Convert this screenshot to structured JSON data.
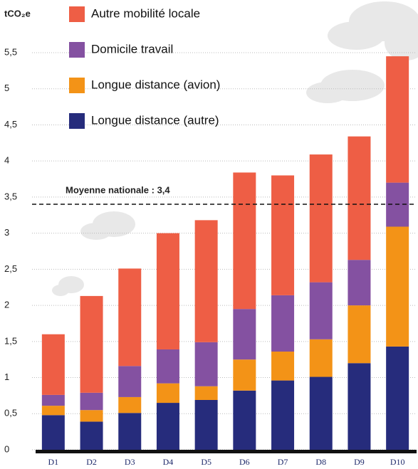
{
  "chart_data": {
    "type": "stacked_bar",
    "y_label": "tCO₂e",
    "categories": [
      "D1",
      "D2",
      "D3",
      "D4",
      "D5",
      "D6",
      "D7",
      "D8",
      "D9",
      "D10"
    ],
    "series": [
      {
        "name": "Longue distance (autre)",
        "color": "#262c7c",
        "values": [
          0.48,
          0.39,
          0.51,
          0.65,
          0.69,
          0.82,
          0.96,
          1.01,
          1.2,
          1.43
        ]
      },
      {
        "name": "Longue distance (avion)",
        "color": "#f39317",
        "values": [
          0.13,
          0.16,
          0.22,
          0.27,
          0.19,
          0.43,
          0.4,
          0.52,
          0.8,
          1.66
        ]
      },
      {
        "name": "Domicile travail",
        "color": "#8451a1",
        "values": [
          0.15,
          0.24,
          0.43,
          0.47,
          0.61,
          0.7,
          0.78,
          0.79,
          0.63,
          0.61
        ]
      },
      {
        "name": "Autre mobilité locale",
        "color": "#ee5e45",
        "values": [
          0.84,
          1.34,
          1.35,
          1.61,
          1.69,
          1.89,
          1.66,
          1.77,
          1.71,
          1.75
        ]
      }
    ],
    "ylim": [
      0,
      5.5
    ],
    "yticks": [
      0,
      {
        "value": 0.5,
        "label": "0,5"
      },
      1,
      {
        "value": 1.5,
        "label": "1,5"
      },
      2,
      {
        "value": 2.5,
        "label": "2,5"
      },
      3,
      {
        "value": 3.5,
        "label": "3,5"
      },
      4,
      {
        "value": 4.5,
        "label": "4,5"
      },
      5,
      {
        "value": 5.5,
        "label": "5,5"
      }
    ],
    "grid": true,
    "reference_line": {
      "value": 3.4,
      "label": "Moyenne nationale : 3,4"
    }
  }
}
